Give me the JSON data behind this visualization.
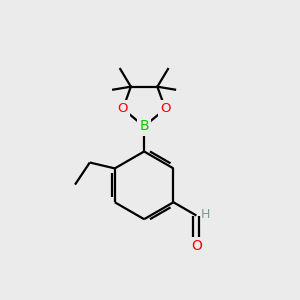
{
  "bg_color": "#ebebeb",
  "bond_color": "#000000",
  "bond_width": 1.6,
  "atom_colors": {
    "O": "#ff0000",
    "B": "#00cc00",
    "H": "#7a9a9a"
  },
  "font_size": 9.5,
  "fig_size": [
    3.0,
    3.0
  ],
  "dpi": 100,
  "xlim": [
    0,
    10
  ],
  "ylim": [
    0,
    10
  ]
}
